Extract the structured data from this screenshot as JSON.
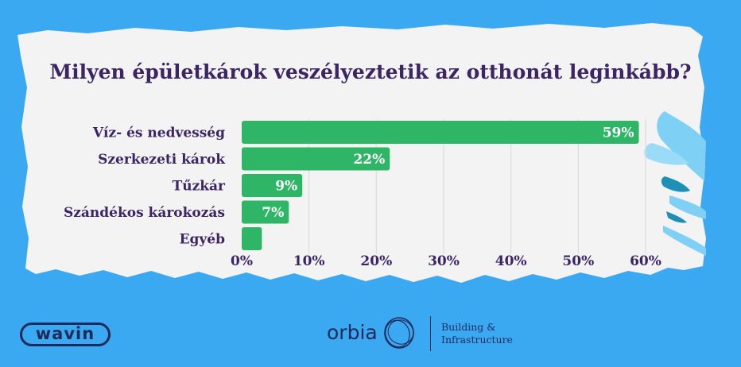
{
  "chart_data": {
    "type": "bar",
    "orientation": "horizontal",
    "title": "Milyen épületkárok veszélyeztetik az otthonát leginkább?",
    "categories": [
      "Víz- és nedvesség",
      "Szerkezeti károk",
      "Tűzkár",
      "Szándékos károkozás",
      "Egyéb"
    ],
    "values": [
      59,
      22,
      9,
      7,
      3
    ],
    "value_labels": [
      "59%",
      "22%",
      "9%",
      "7%",
      ""
    ],
    "xlim": [
      0,
      60
    ],
    "xticks": [
      0,
      10,
      20,
      30,
      40,
      50,
      60
    ],
    "xtick_labels": [
      "0%",
      "10%",
      "20%",
      "30%",
      "40%",
      "50%",
      "60%"
    ],
    "grid": "vertical",
    "bar_color": "#2eb566"
  },
  "colors": {
    "background": "#3aa9f2",
    "paper": "#f3f3f3",
    "text": "#3b2565",
    "bar": "#2eb566",
    "splash_light": "#7fd0f5",
    "splash_dark": "#1e8fb5"
  },
  "footer": {
    "wavin_logo": "wavin",
    "orbia_logo": "orbia",
    "bi_line1": "Building &",
    "bi_line2": "Infrastructure"
  }
}
